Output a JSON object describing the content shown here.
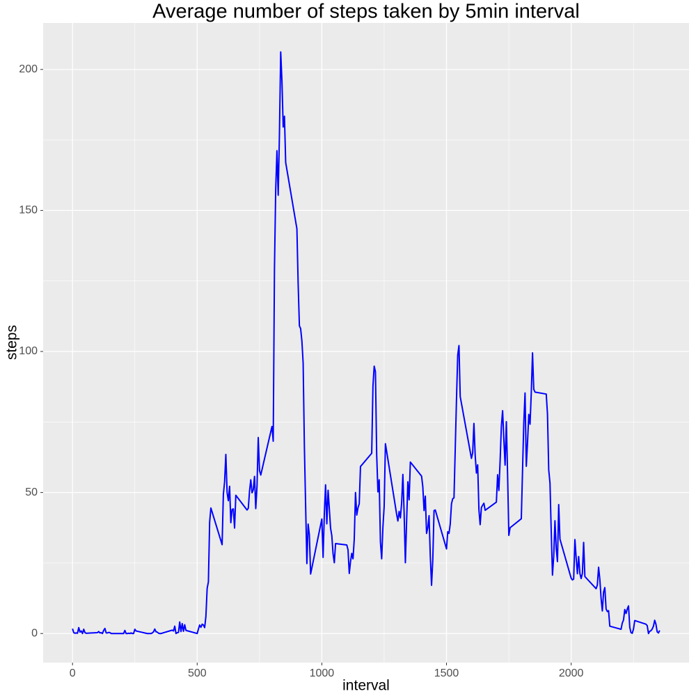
{
  "chart_data": {
    "type": "line",
    "title": "Average number of steps taken by 5min interval",
    "x_label": "interval",
    "y_label": "steps",
    "color": "blue",
    "grid": true,
    "xlim": [
      -117.75,
      2472.75
    ],
    "ylim": [
      -10.31,
      216.48
    ],
    "xticks": [
      0,
      500,
      1000,
      1500,
      2000
    ],
    "yticks": [
      0,
      50,
      100,
      150,
      200
    ],
    "x": [
      0,
      5,
      10,
      15,
      20,
      25,
      30,
      35,
      40,
      45,
      50,
      55,
      100,
      105,
      110,
      115,
      120,
      125,
      130,
      135,
      140,
      145,
      150,
      155,
      200,
      205,
      210,
      215,
      220,
      225,
      230,
      235,
      240,
      245,
      250,
      255,
      300,
      305,
      310,
      315,
      320,
      325,
      330,
      335,
      340,
      345,
      350,
      355,
      400,
      405,
      410,
      415,
      420,
      425,
      430,
      435,
      440,
      445,
      450,
      455,
      500,
      505,
      510,
      515,
      520,
      525,
      530,
      535,
      540,
      545,
      550,
      555,
      600,
      605,
      610,
      615,
      620,
      625,
      630,
      635,
      640,
      645,
      650,
      655,
      700,
      705,
      710,
      715,
      720,
      725,
      730,
      735,
      740,
      745,
      750,
      755,
      800,
      805,
      810,
      815,
      820,
      825,
      830,
      835,
      840,
      845,
      850,
      855,
      900,
      905,
      910,
      915,
      920,
      925,
      930,
      935,
      940,
      945,
      950,
      955,
      1000,
      1005,
      1010,
      1015,
      1020,
      1025,
      1030,
      1035,
      1040,
      1045,
      1050,
      1055,
      1100,
      1105,
      1110,
      1115,
      1120,
      1125,
      1130,
      1135,
      1140,
      1145,
      1150,
      1155,
      1200,
      1205,
      1210,
      1215,
      1220,
      1225,
      1230,
      1235,
      1240,
      1245,
      1250,
      1255,
      1300,
      1305,
      1310,
      1315,
      1320,
      1325,
      1330,
      1335,
      1340,
      1345,
      1350,
      1355,
      1400,
      1405,
      1410,
      1415,
      1420,
      1425,
      1430,
      1435,
      1440,
      1445,
      1450,
      1455,
      1500,
      1505,
      1510,
      1515,
      1520,
      1525,
      1530,
      1535,
      1540,
      1545,
      1550,
      1555,
      1600,
      1605,
      1610,
      1615,
      1620,
      1625,
      1630,
      1635,
      1640,
      1645,
      1650,
      1655,
      1700,
      1705,
      1710,
      1715,
      1720,
      1725,
      1730,
      1735,
      1740,
      1745,
      1750,
      1755,
      1800,
      1805,
      1810,
      1815,
      1820,
      1825,
      1830,
      1835,
      1840,
      1845,
      1850,
      1855,
      1900,
      1905,
      1910,
      1915,
      1920,
      1925,
      1930,
      1935,
      1940,
      1945,
      1950,
      1955,
      2000,
      2005,
      2010,
      2015,
      2020,
      2025,
      2030,
      2035,
      2040,
      2045,
      2050,
      2055,
      2100,
      2105,
      2110,
      2115,
      2120,
      2125,
      2130,
      2135,
      2140,
      2145,
      2150,
      2155,
      2200,
      2205,
      2210,
      2215,
      2220,
      2225,
      2230,
      2235,
      2240,
      2245,
      2250,
      2255,
      2300,
      2305,
      2310,
      2315,
      2320,
      2325,
      2330,
      2335,
      2340,
      2345,
      2350,
      2355
    ],
    "values": [
      1.7,
      0.3,
      0.1,
      0.2,
      0.1,
      2.1,
      0.5,
      0.9,
      0,
      1.5,
      0.3,
      0.1,
      0.3,
      0.7,
      0.2,
      0.3,
      0,
      1.1,
      1.8,
      0.2,
      0.2,
      0.4,
      0.3,
      0,
      0,
      0,
      1.1,
      0,
      0,
      0.1,
      0,
      0.2,
      0,
      0,
      1.5,
      0.9,
      0,
      0,
      0,
      0,
      0.2,
      0.6,
      1.6,
      0.6,
      0.5,
      0.1,
      0,
      0,
      1.2,
      0.9,
      2.6,
      0,
      0.3,
      0.4,
      4.1,
      0.7,
      3.5,
      0.8,
      3.1,
      1.1,
      0,
      1.6,
      3.0,
      2.2,
      3.3,
      3.0,
      2.1,
      6.1,
      16.0,
      18.3,
      39.5,
      44.5,
      31.5,
      49.3,
      53.8,
      63.5,
      50.0,
      47.1,
      52.2,
      39.3,
      44.0,
      44.2,
      37.4,
      49.0,
      43.8,
      44.4,
      50.5,
      54.5,
      49.9,
      51.0,
      55.7,
      44.3,
      52.3,
      69.5,
      57.8,
      56.2,
      73.4,
      68.2,
      129.4,
      157.5,
      171.2,
      155.4,
      177.3,
      206.2,
      195.9,
      179.6,
      183.4,
      167.0,
      143.5,
      124.0,
      109.1,
      108.1,
      103.7,
      95.9,
      66.2,
      45.2,
      24.8,
      38.8,
      35.0,
      21.1,
      40.6,
      27.0,
      42.4,
      52.7,
      38.9,
      50.8,
      44.3,
      37.4,
      34.7,
      28.3,
      25.1,
      31.9,
      31.4,
      29.7,
      21.3,
      25.5,
      28.4,
      26.5,
      33.4,
      50.0,
      42.0,
      44.6,
      46.0,
      59.2,
      63.9,
      87.7,
      94.8,
      92.8,
      63.4,
      50.2,
      54.5,
      32.4,
      26.5,
      37.7,
      45.1,
      67.3,
      42.3,
      39.9,
      43.3,
      41.0,
      46.2,
      56.4,
      42.8,
      25.1,
      39.8,
      53.8,
      47.4,
      60.8,
      55.8,
      52.0,
      43.6,
      48.7,
      35.5,
      37.5,
      41.8,
      27.5,
      17.1,
      26.1,
      43.6,
      43.8,
      30.0,
      36.1,
      35.5,
      38.8,
      46.0,
      47.8,
      48.1,
      65.3,
      82.9,
      98.7,
      102.1,
      84.0,
      62.1,
      64.1,
      74.5,
      63.2,
      56.9,
      59.8,
      43.9,
      38.6,
      44.7,
      45.5,
      46.2,
      43.7,
      46.6,
      56.3,
      50.7,
      61.2,
      73.4,
      79.0,
      68.9,
      59.7,
      75.1,
      56.5,
      34.8,
      37.5,
      40.7,
      58.0,
      74.7,
      85.3,
      59.3,
      67.8,
      77.7,
      74.2,
      85.3,
      99.5,
      86.6,
      85.6,
      84.9,
      77.8,
      58.0,
      53.4,
      36.3,
      20.7,
      27.4,
      40.0,
      30.2,
      25.5,
      45.7,
      33.5,
      19.6,
      19.0,
      19.3,
      33.3,
      26.8,
      21.2,
      27.3,
      21.3,
      19.5,
      21.3,
      32.3,
      20.2,
      15.9,
      17.2,
      23.5,
      19.2,
      12.5,
      8.0,
      14.7,
      16.3,
      8.7,
      7.8,
      8.1,
      2.6,
      1.5,
      3.7,
      4.8,
      8.5,
      7.1,
      8.7,
      9.8,
      2.2,
      0.3,
      0.1,
      1.6,
      4.6,
      3.3,
      2.8,
      0,
      0.8,
      1.0,
      1.6,
      2.6,
      4.7,
      3.3,
      0.6,
      0.2,
      1.1
    ]
  }
}
